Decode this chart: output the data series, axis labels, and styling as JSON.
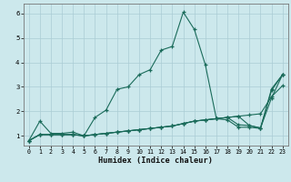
{
  "title": "",
  "xlabel": "Humidex (Indice chaleur)",
  "bg_color": "#cce8ec",
  "grid_color": "#aaccd4",
  "line_color": "#1a6b5a",
  "xlim": [
    -0.5,
    23.5
  ],
  "ylim": [
    0.6,
    6.4
  ],
  "yticks": [
    1,
    2,
    3,
    4,
    5,
    6
  ],
  "xticks": [
    0,
    1,
    2,
    3,
    4,
    5,
    6,
    7,
    8,
    9,
    10,
    11,
    12,
    13,
    14,
    15,
    16,
    17,
    18,
    19,
    20,
    21,
    22,
    23
  ],
  "series": [
    {
      "x": [
        0,
        1,
        2,
        3,
        4,
        5,
        6,
        7,
        8,
        9,
        10,
        11,
        12,
        13,
        14,
        15,
        16,
        17,
        18,
        19,
        20,
        21,
        22,
        23
      ],
      "y": [
        0.8,
        1.6,
        1.1,
        1.1,
        1.15,
        1.0,
        1.75,
        2.05,
        2.9,
        3.0,
        3.5,
        3.7,
        4.5,
        4.65,
        6.05,
        5.35,
        3.9,
        1.7,
        1.65,
        1.35,
        1.35,
        1.3,
        2.85,
        3.5
      ]
    },
    {
      "x": [
        0,
        1,
        2,
        3,
        4,
        5,
        6,
        7,
        8,
        9,
        10,
        11,
        12,
        13,
        14,
        15,
        16,
        17,
        18,
        19,
        20,
        21,
        22,
        23
      ],
      "y": [
        0.8,
        1.05,
        1.05,
        1.05,
        1.05,
        1.0,
        1.05,
        1.1,
        1.15,
        1.2,
        1.25,
        1.3,
        1.35,
        1.4,
        1.5,
        1.6,
        1.65,
        1.7,
        1.75,
        1.8,
        1.85,
        1.9,
        2.6,
        3.05
      ]
    },
    {
      "x": [
        0,
        1,
        2,
        3,
        4,
        5,
        6,
        7,
        8,
        9,
        10,
        11,
        12,
        13,
        14,
        15,
        16,
        17,
        18,
        19,
        20,
        21,
        22,
        23
      ],
      "y": [
        0.8,
        1.05,
        1.05,
        1.05,
        1.05,
        1.0,
        1.05,
        1.1,
        1.15,
        1.2,
        1.25,
        1.3,
        1.35,
        1.4,
        1.5,
        1.6,
        1.65,
        1.7,
        1.75,
        1.45,
        1.42,
        1.32,
        2.92,
        3.5
      ]
    },
    {
      "x": [
        0,
        1,
        2,
        3,
        4,
        5,
        6,
        7,
        8,
        9,
        10,
        11,
        12,
        13,
        14,
        15,
        16,
        17,
        18,
        19,
        20,
        21,
        22,
        23
      ],
      "y": [
        0.8,
        1.05,
        1.05,
        1.05,
        1.05,
        1.0,
        1.05,
        1.1,
        1.15,
        1.2,
        1.25,
        1.3,
        1.35,
        1.4,
        1.5,
        1.6,
        1.65,
        1.7,
        1.75,
        1.8,
        1.42,
        1.32,
        2.55,
        3.5
      ]
    }
  ]
}
